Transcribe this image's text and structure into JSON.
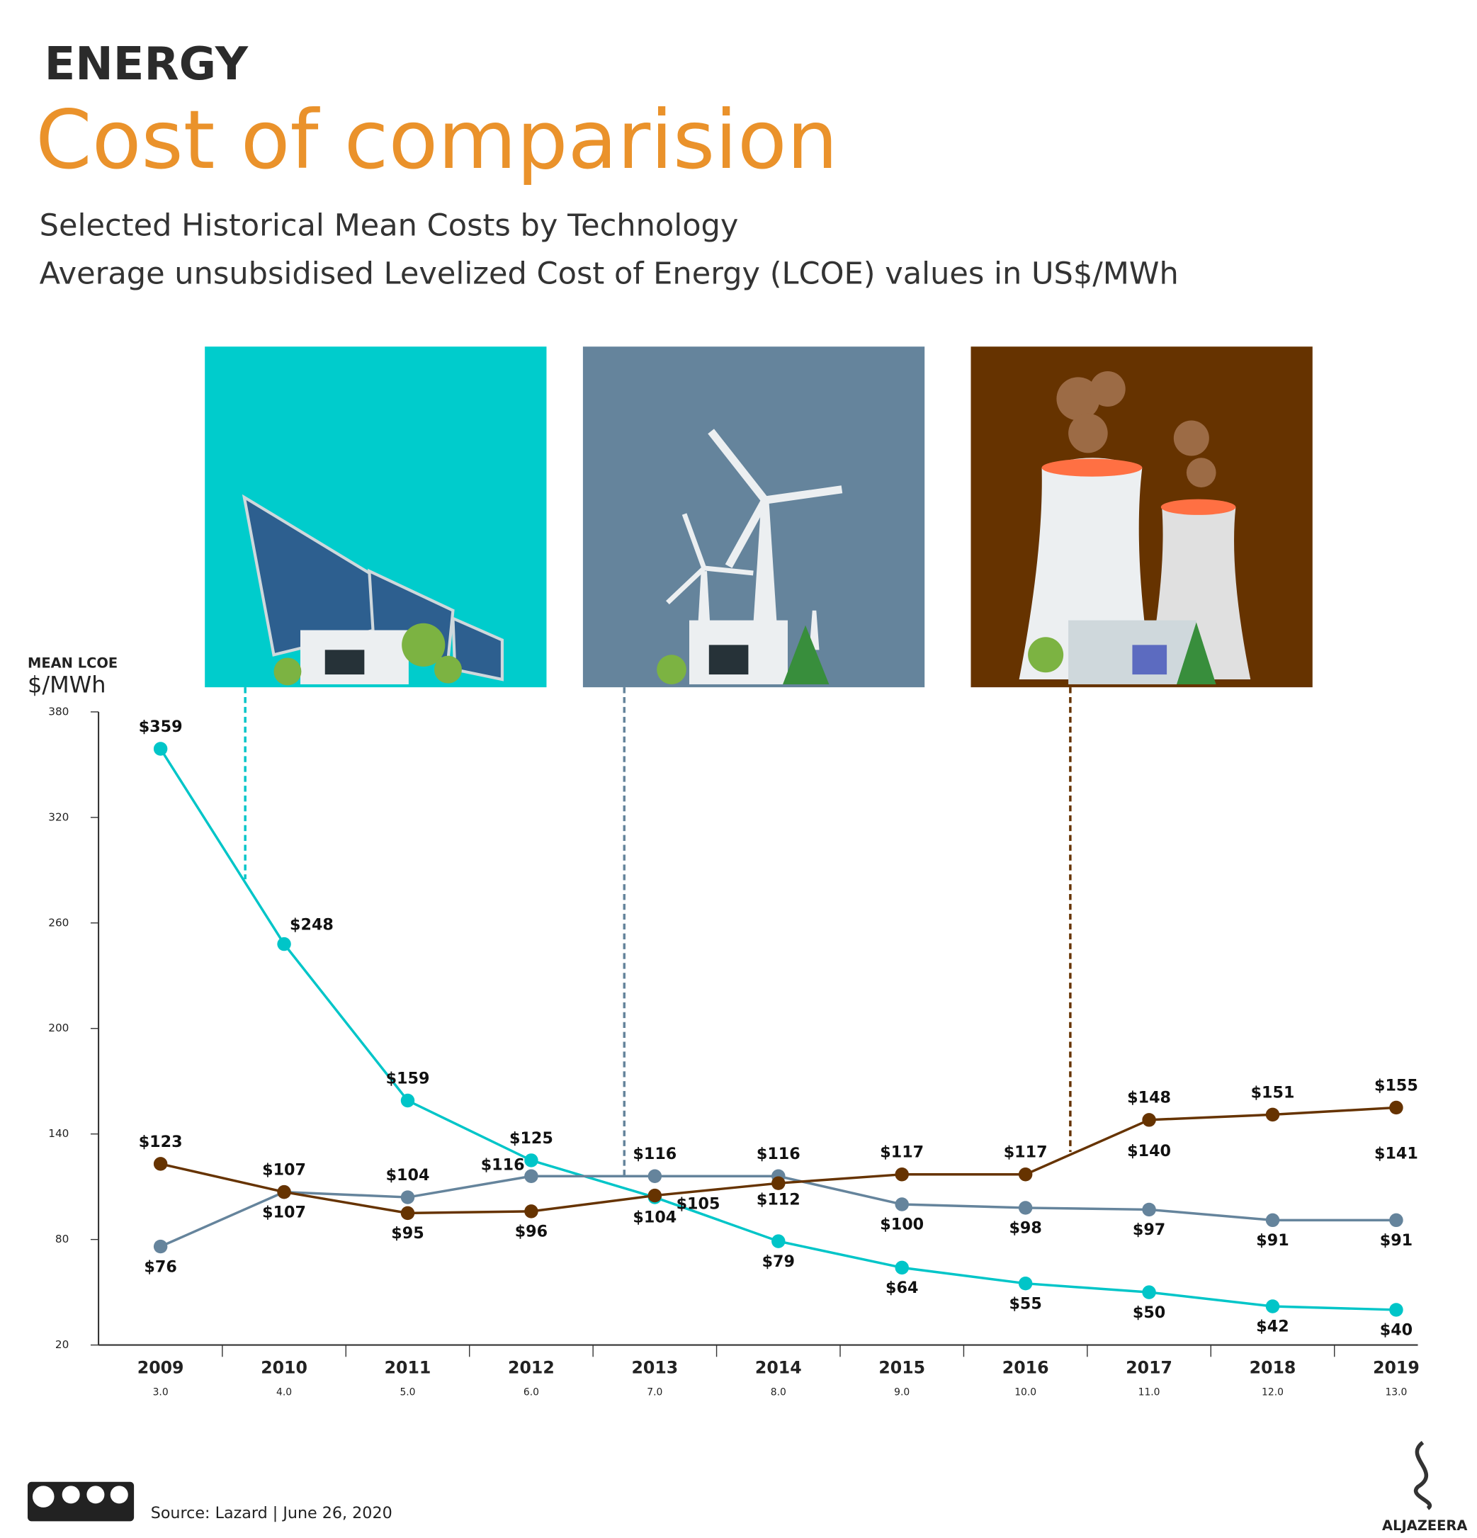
{
  "chart_data": {
    "type": "line",
    "kicker": "ENERGY",
    "title": "Cost of comparision",
    "subtitle": "Selected Historical Mean Costs by Technology",
    "description": "Average unsubsidised Levelized Cost of Energy (LCOE) values in US$/MWh",
    "y_axis_label": "MEAN LCOE",
    "y_axis_unit": "$/MWh",
    "categories": [
      "2009",
      "2010",
      "2011",
      "2012",
      "2013",
      "2014",
      "2015",
      "2016",
      "2017",
      "2018",
      "2019"
    ],
    "x_sublabels": [
      "3.0",
      "4.0",
      "5.0",
      "6.0",
      "7.0",
      "8.0",
      "9.0",
      "10.0",
      "11.0",
      "12.0",
      "13.0"
    ],
    "ylim": [
      20,
      380
    ],
    "yticks": [
      20,
      80,
      140,
      200,
      260,
      320,
      380
    ],
    "series": [
      {
        "color": "#00c5c8",
        "values": [
          359,
          248,
          159,
          125,
          104,
          79,
          64,
          55,
          50,
          42,
          40
        ],
        "value_labels": [
          "$359",
          "$248",
          "$159",
          "$125",
          "$104",
          "$79",
          "$64",
          "$55",
          "$50",
          "$42",
          "$40"
        ]
      },
      {
        "color": "#65849c",
        "values": [
          76,
          107,
          104,
          116,
          116,
          116,
          100,
          98,
          97,
          91,
          91
        ],
        "value_labels": [
          "$76",
          "$107",
          "$104",
          "$116",
          "$116",
          "$116",
          "$100",
          "$98",
          "$97",
          "$91",
          "$91"
        ]
      },
      {
        "color": "#663300",
        "values": [
          123,
          107,
          95,
          96,
          105,
          112,
          117,
          117,
          148,
          151,
          155
        ],
        "value_labels": [
          "$123",
          "$107",
          "$95",
          "$96",
          "$105",
          "$112",
          "$117",
          "$117",
          "$148",
          "$151",
          "$155"
        ]
      },
      {
        "line": false,
        "values": [
          null,
          null,
          null,
          null,
          null,
          null,
          null,
          null,
          140,
          null,
          141
        ],
        "value_labels": [
          null,
          null,
          null,
          null,
          null,
          null,
          null,
          null,
          "$140",
          null,
          "$141"
        ]
      }
    ],
    "source": "Source: Lazard  |  June 26, 2020",
    "license": [
      "BY",
      "NC",
      "SA"
    ],
    "logo": "ALJAZEERA"
  }
}
